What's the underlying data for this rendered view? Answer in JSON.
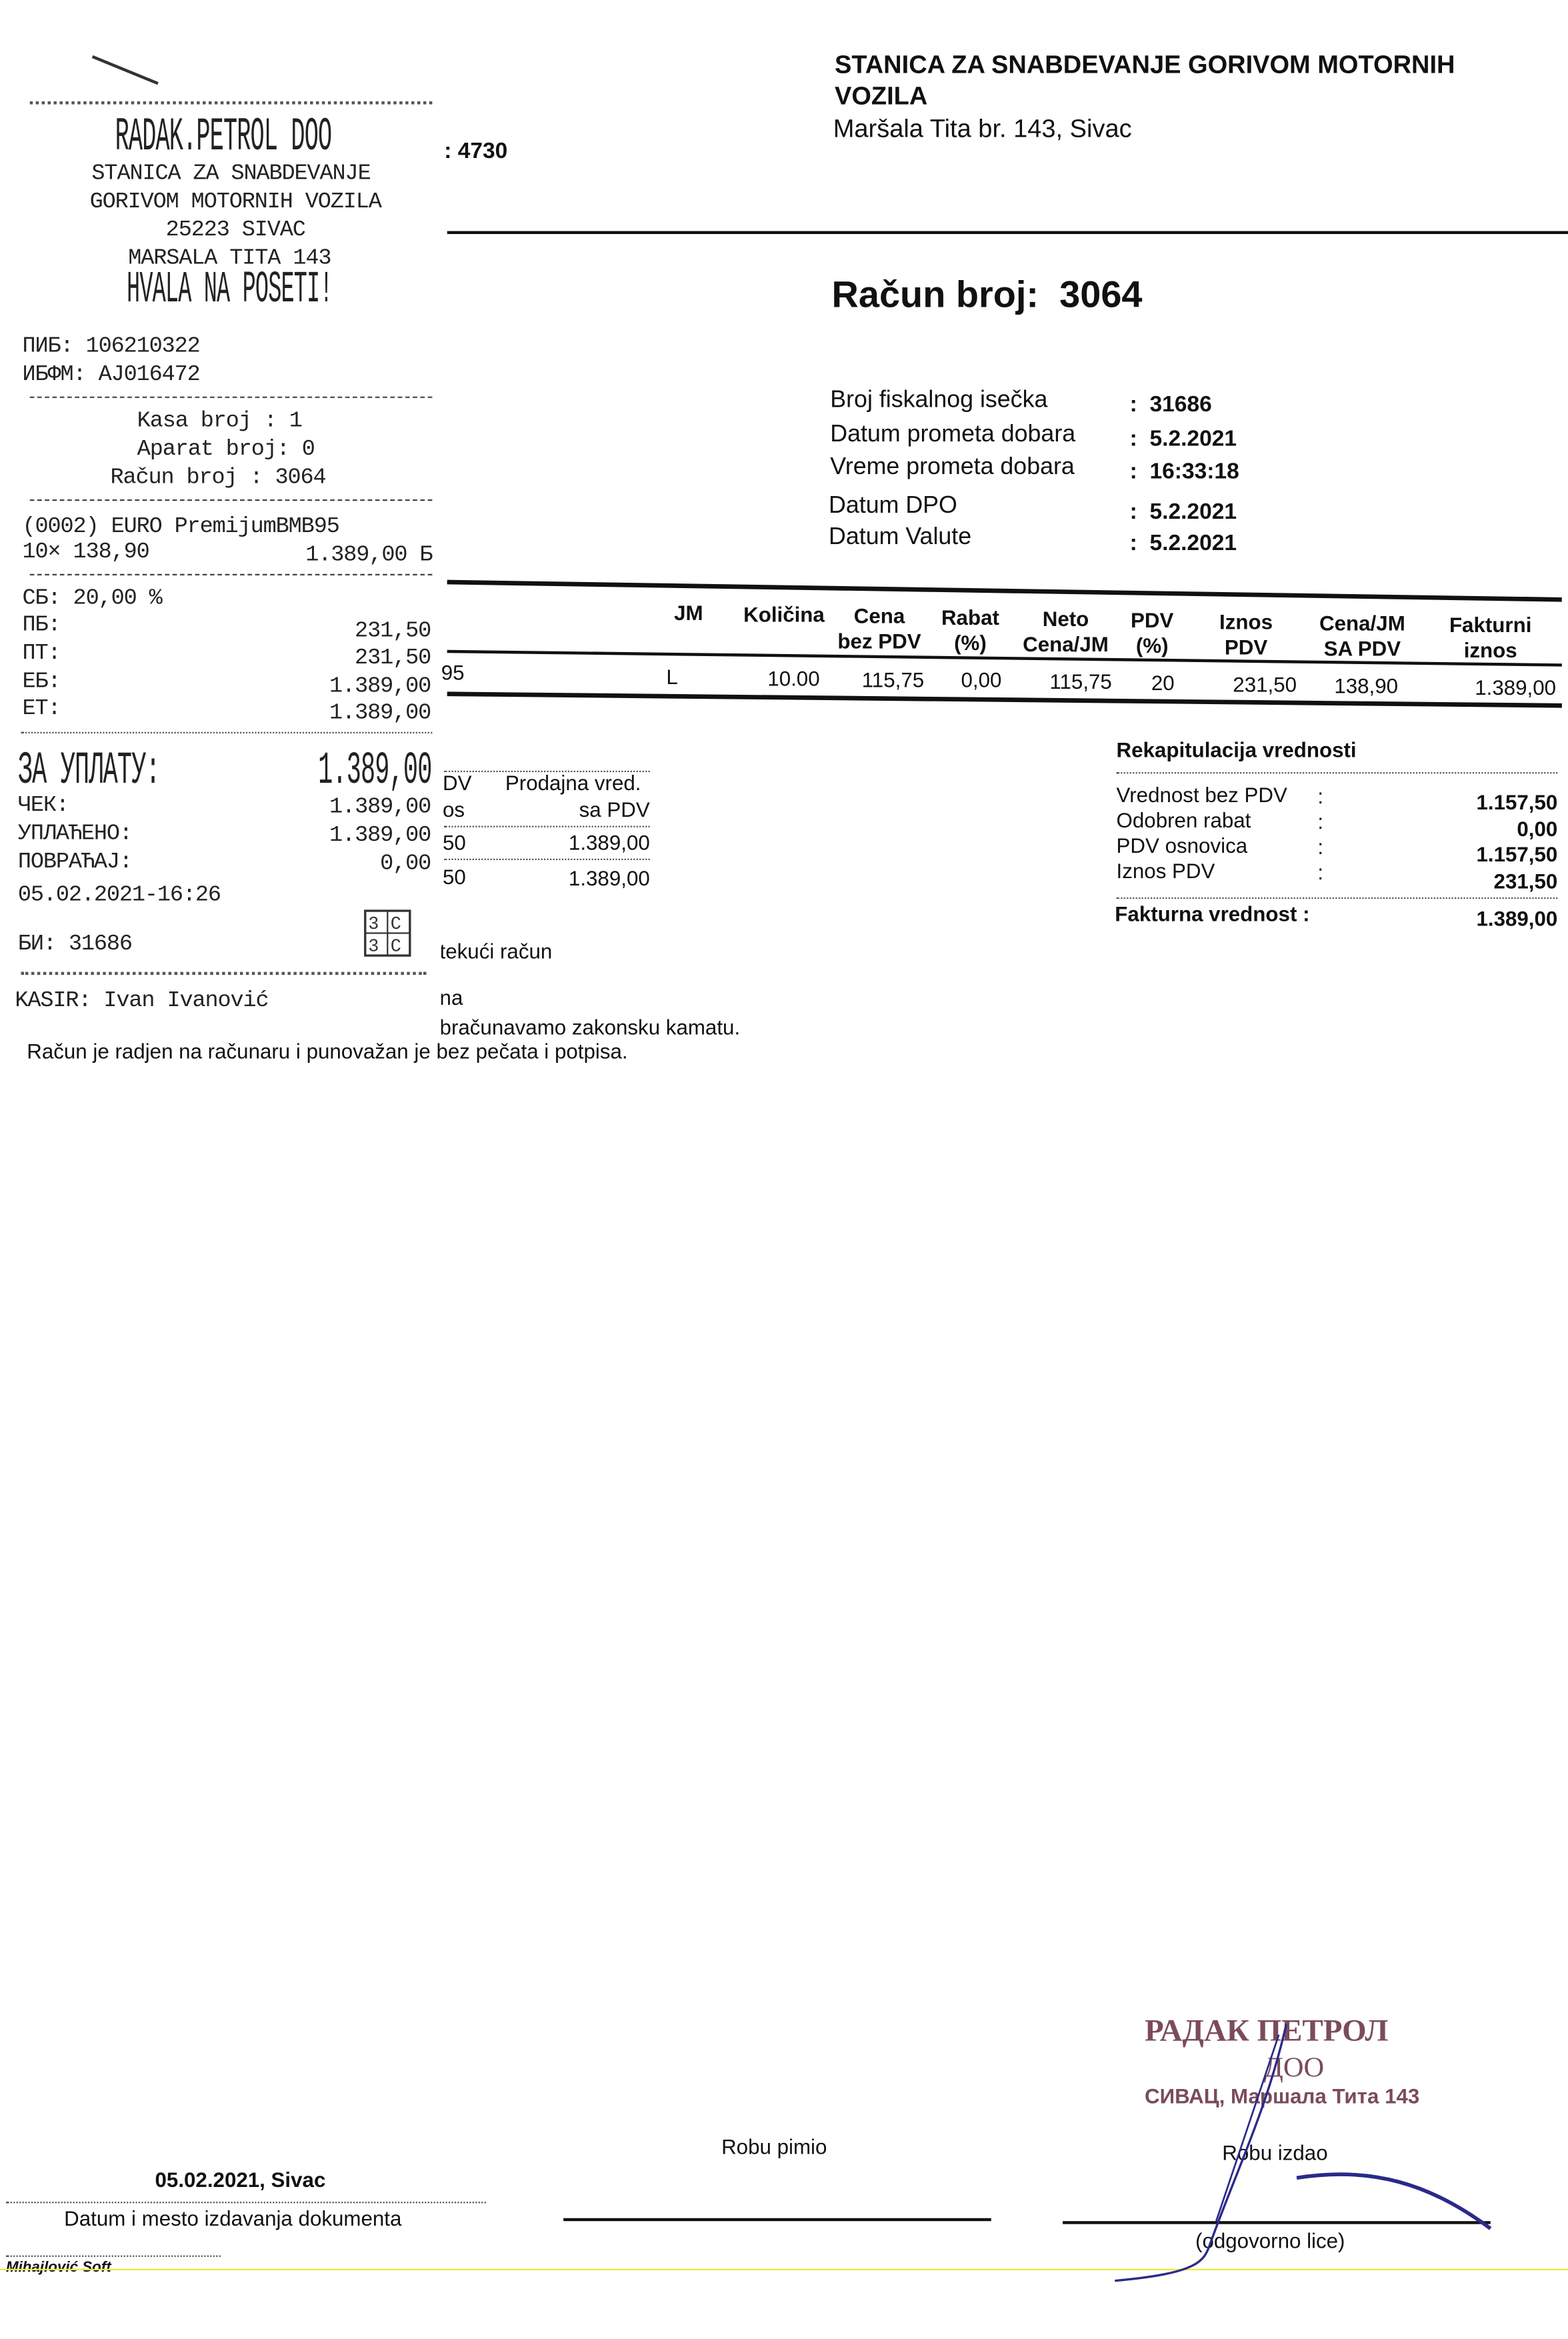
{
  "invoice": {
    "company_line1": "STANICA ZA SNABDEVANJE GORIVOM MOTORNIH",
    "company_line2": "VOZILA",
    "address": "Maršala Tita  br. 143, Sivac",
    "partial_number": ": 4730",
    "title_label": "Račun broj:",
    "title_number": "3064",
    "details": [
      {
        "label": "Broj fiskalnog isečka",
        "value": "31686"
      },
      {
        "label": "Datum prometa dobara",
        "value": "5.2.2021"
      },
      {
        "label": "Vreme prometa dobara",
        "value": "16:33:18"
      },
      {
        "label": "Datum DPO",
        "value": "5.2.2021"
      },
      {
        "label": "Datum Valute",
        "value": "5.2.2021"
      }
    ],
    "table": {
      "headers": [
        "JM",
        "Količina",
        "Cena\nbez PDV",
        "Rabat\n(%)",
        "Neto\nCena/JM",
        "PDV\n(%)",
        "Iznos\nPDV",
        "Cena/JM\nSA PDV",
        "Fakturni\niznos"
      ],
      "row_partial": "95",
      "row": [
        "L",
        "10.00",
        "115,75",
        "0,00",
        "115,75",
        "20",
        "231,50",
        "138,90",
        "1.389,00"
      ]
    },
    "tax_summary": {
      "header_left_partial1": "DV",
      "header_right1": "Prodajna vred.",
      "header_left_partial2": "os",
      "header_right2": "sa PDV",
      "rows": [
        {
          "left": "50",
          "right": "1.389,00"
        },
        {
          "left": "50",
          "right": "1.389,00"
        }
      ]
    },
    "recap": {
      "title": "Rekapitulacija vrednosti",
      "rows": [
        {
          "label": "Vrednost bez PDV",
          "value": "1.157,50"
        },
        {
          "label": "Odobren rabat",
          "value": "0,00"
        },
        {
          "label": "PDV osnovica",
          "value": "1.157,50"
        },
        {
          "label": "Iznos PDV",
          "value": "231,50"
        }
      ],
      "total_label": "Fakturna vrednost :",
      "total_value": "1.389,00"
    },
    "notes": {
      "partial1": "tekući račun",
      "partial2": "na",
      "partial3": "bračunavamo zakonsku kamatu.",
      "full": "Račun je radjen na računaru i punovažan je bez pečata i potpisa."
    },
    "footer": {
      "date_place": "05.02.2021, Sivac",
      "date_place_label": "Datum i mesto izdavanja dokumenta",
      "received_label": "Robu pimio",
      "issued_label": "Robu izdao",
      "responsible_label": "(odgovorno lice)",
      "software": "Mihajlović Soft"
    },
    "stamp": {
      "line1": "РАДАК ПЕТРОЛ",
      "line2": "ДОО",
      "line3": "СИВАЦ, Маршала Тита 143"
    },
    "colors": {
      "stamp": "#7b4b5c",
      "signature": "#2a2a8a"
    }
  },
  "receipt": {
    "company": "RADAK.PETROL DOO",
    "line1": "STANICA ZA SNABDEVANJE",
    "line2": "GORIVOM MOTORNIH VOZILA",
    "line3": "25223 SIVAC",
    "line4": "MARSALA TITA 143",
    "thanks": "HVALA NA POSETI!",
    "pib": "ПИБ: 106210322",
    "ibfm": "ИБФМ: AJ016472",
    "kasa": "Kasa broj  : 1",
    "aparat": "Aparat broj: 0",
    "racun": "Račun broj  : 3064",
    "item_name": "(0002) EURO PremijumBMB95",
    "item_qty": "10× 138,90",
    "item_total": "1.389,00 Б",
    "sb": "СБ:  20,00 %",
    "taxes": [
      {
        "label": "ПБ:",
        "value": "231,50"
      },
      {
        "label": "ПТ:",
        "value": "231,50"
      },
      {
        "label": "ЕБ:",
        "value": "1.389,00"
      },
      {
        "label": "ЕТ:",
        "value": "1.389,00"
      }
    ],
    "total_label": "ЗА УПЛАТУ:",
    "total_value": "1.389,00",
    "payments": [
      {
        "label": "ЧЕК:",
        "value": "1.389,00"
      },
      {
        "label": "УПЛАЋЕНО:",
        "value": "1.389,00"
      },
      {
        "label": "ПОВРАЋАЈ:",
        "value": "0,00"
      }
    ],
    "datetime": "05.02.2021-16:26",
    "bi": "БИ: 31686",
    "cashier": "KASIR: Ivan Ivanović"
  }
}
